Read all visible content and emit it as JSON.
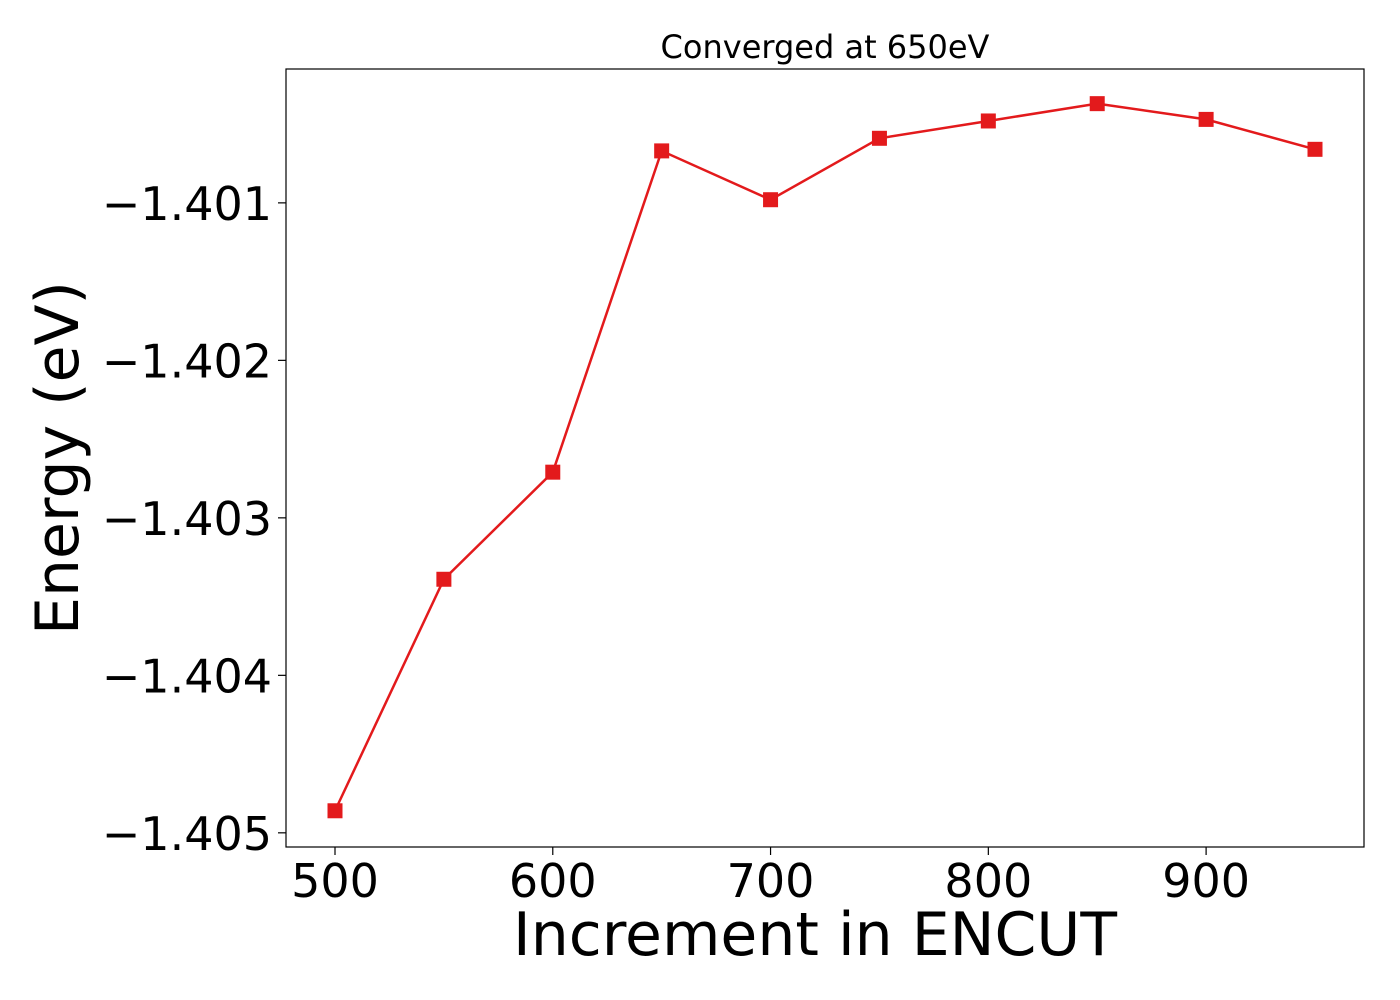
{
  "chart_data": {
    "type": "line",
    "title": "Converged at 650eV",
    "xlabel": "Increment in ENCUT",
    "ylabel": "Energy (eV)",
    "x": [
      500,
      550,
      600,
      650,
      700,
      750,
      800,
      850,
      900,
      950
    ],
    "series": [
      {
        "values": [
          -1.40486,
          -1.40339,
          -1.40271,
          -1.40067,
          -1.40098,
          -1.40059,
          -1.40048,
          -1.40037,
          -1.40047,
          -1.40066
        ],
        "color": "#e31a1c",
        "marker": "square"
      }
    ],
    "xlim": [
      477.5,
      972.5
    ],
    "ylim": [
      -1.40509,
      -1.40015
    ],
    "xticks": [
      500,
      600,
      700,
      800,
      900
    ],
    "xtick_labels": [
      "500",
      "600",
      "700",
      "800",
      "900"
    ],
    "yticks": [
      -1.405,
      -1.404,
      -1.403,
      -1.402,
      -1.401
    ],
    "ytick_labels": [
      "−1.405",
      "−1.404",
      "−1.403",
      "−1.402",
      "−1.401"
    ],
    "grid": false,
    "legend": "none"
  }
}
